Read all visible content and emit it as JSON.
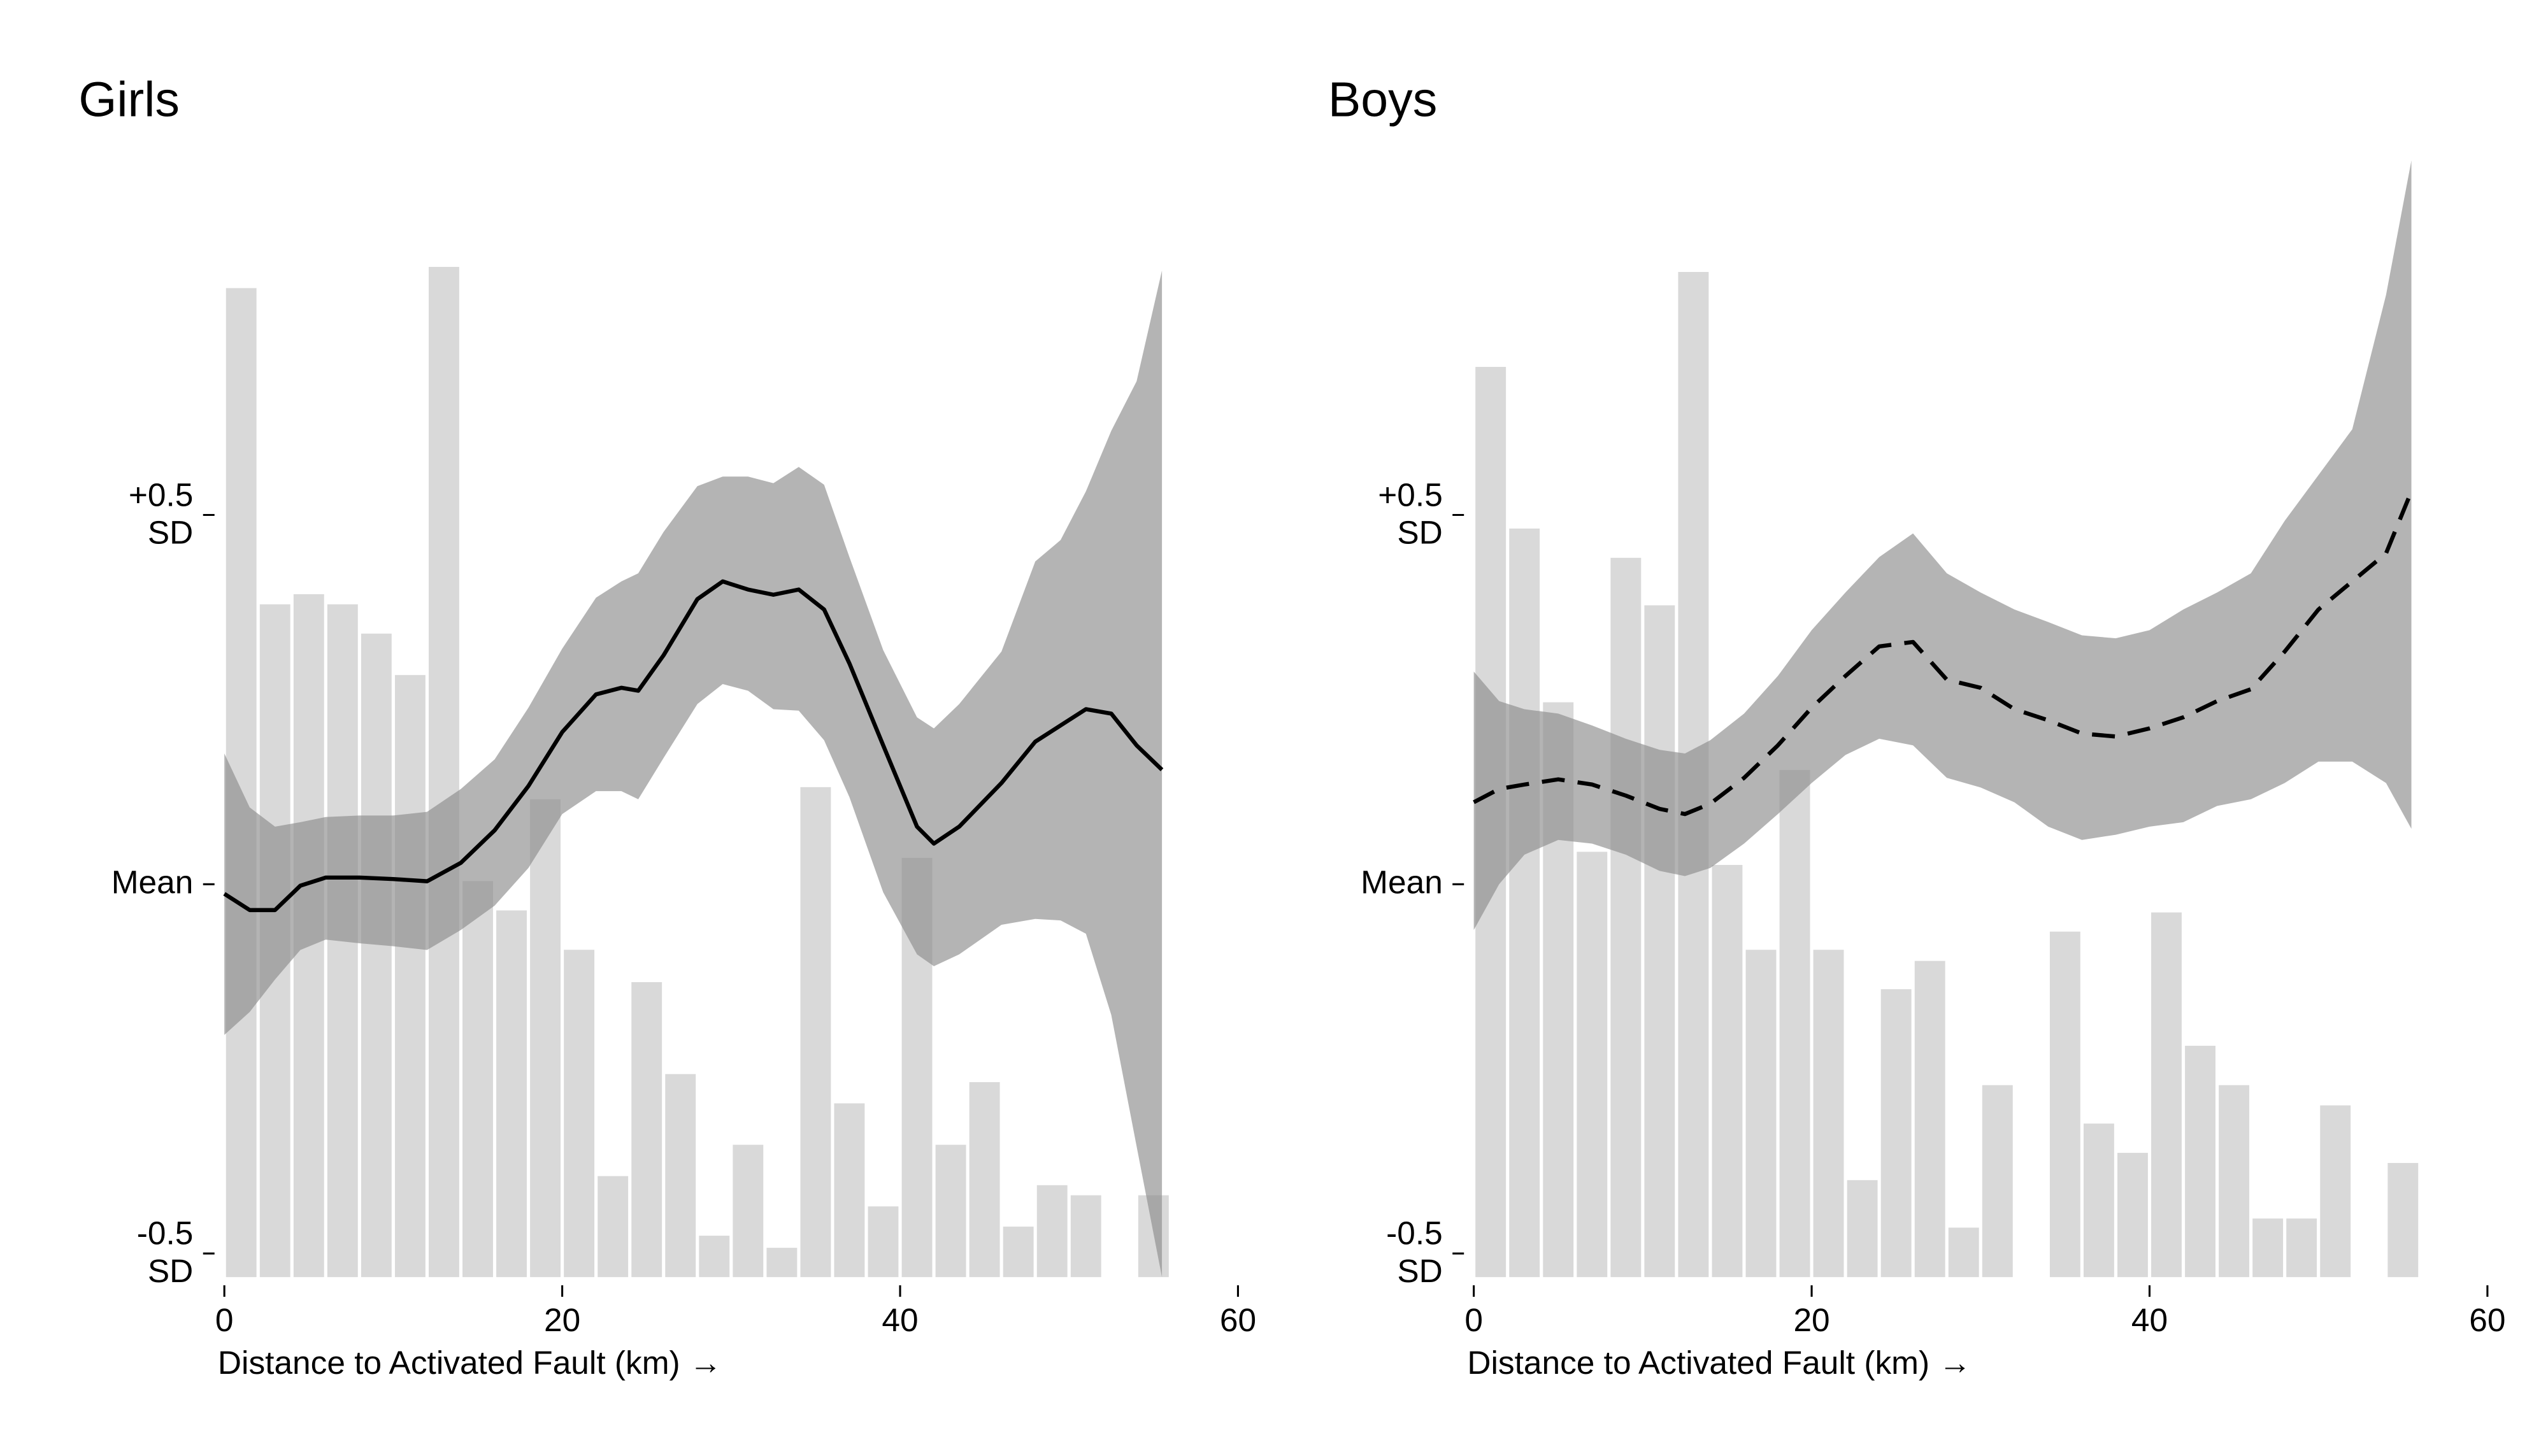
{
  "chart_data": [
    {
      "type": "line",
      "title": "Girls",
      "xlabel": "Distance to Activated Fault (km) →",
      "xlim": [
        0,
        60
      ],
      "xticks": [
        0,
        20,
        40,
        60
      ],
      "ylim": [
        -0.532,
        0.98
      ],
      "yticks": [
        {
          "value": 0.5,
          "label": "+0.5\nSD"
        },
        {
          "value": 0,
          "label": "Mean"
        },
        {
          "value": -0.5,
          "label": "-0.5\nSD"
        }
      ],
      "x": [
        0,
        1.5,
        3,
        4.5,
        6,
        8,
        10,
        12,
        14,
        16,
        18,
        20,
        22,
        23.5,
        24.5,
        26,
        28,
        29.5,
        31,
        32.5,
        34,
        35.5,
        37,
        39,
        41,
        42,
        43.5,
        46,
        48,
        49.5,
        51,
        52.5,
        54,
        55.5
      ],
      "series": [
        {
          "color": "#000000",
          "dashed": false,
          "band_color": "#8c8c8c",
          "values": [
            -0.013,
            -0.035,
            -0.035,
            -0.002,
            0.009,
            0.009,
            0.007,
            0.004,
            0.029,
            0.073,
            0.133,
            0.206,
            0.257,
            0.266,
            0.262,
            0.31,
            0.386,
            0.41,
            0.399,
            0.392,
            0.399,
            0.372,
            0.299,
            0.188,
            0.078,
            0.055,
            0.078,
            0.137,
            0.193,
            0.215,
            0.237,
            0.231,
            0.188,
            0.155
          ],
          "upper": [
            0.177,
            0.104,
            0.078,
            0.084,
            0.091,
            0.093,
            0.093,
            0.098,
            0.129,
            0.169,
            0.239,
            0.319,
            0.388,
            0.41,
            0.421,
            0.477,
            0.539,
            0.552,
            0.552,
            0.543,
            0.565,
            0.541,
            0.443,
            0.317,
            0.226,
            0.211,
            0.244,
            0.315,
            0.437,
            0.466,
            0.532,
            0.614,
            0.681,
            0.831
          ],
          "lower": [
            -0.204,
            -0.173,
            -0.129,
            -0.089,
            -0.075,
            -0.08,
            -0.084,
            -0.089,
            -0.062,
            -0.029,
            0.022,
            0.095,
            0.126,
            0.126,
            0.115,
            0.171,
            0.244,
            0.271,
            0.262,
            0.237,
            0.235,
            0.195,
            0.118,
            -0.011,
            -0.095,
            -0.111,
            -0.095,
            -0.055,
            -0.047,
            -0.049,
            -0.067,
            -0.177,
            -0.355,
            -0.532
          ]
        }
      ],
      "histogram": {
        "color": "#d9d9d9",
        "ylim": [
          0,
          100
        ],
        "bins": [
          0,
          2,
          4,
          6,
          8,
          10,
          12,
          14,
          16,
          18,
          20,
          22,
          24,
          26,
          28,
          30,
          32,
          34,
          36,
          38,
          40,
          42,
          44,
          46,
          48,
          50,
          52,
          54,
          56
        ],
        "counts": [
          97.9,
          66.6,
          67.6,
          66.6,
          63.7,
          59.6,
          100,
          39.2,
          36.3,
          47.3,
          32.4,
          10,
          29.2,
          20.1,
          4.1,
          13.1,
          2.9,
          48.5,
          17.2,
          7,
          41.5,
          13.1,
          19.3,
          5,
          9.1,
          8.1,
          0,
          8.1
        ]
      }
    },
    {
      "type": "line",
      "title": "Boys",
      "xlabel": "Distance to Activated Fault (km) →",
      "xlim": [
        0,
        60
      ],
      "xticks": [
        0,
        20,
        40,
        60
      ],
      "ylim": [
        -0.532,
        0.98
      ],
      "yticks": [
        {
          "value": 0.5,
          "label": "+0.5\nSD"
        },
        {
          "value": 0,
          "label": "Mean"
        },
        {
          "value": -0.5,
          "label": "-0.5\nSD"
        }
      ],
      "x": [
        0,
        1.5,
        3,
        5,
        7,
        9,
        11,
        12.5,
        14,
        16,
        18,
        20,
        22,
        24,
        26,
        28,
        30,
        32,
        34,
        36,
        38,
        40,
        42,
        44,
        46,
        48,
        50,
        52,
        54,
        55.5
      ],
      "series": [
        {
          "color": "#000000",
          "dashed": true,
          "band_color": "#8c8c8c",
          "values": [
            0.111,
            0.129,
            0.135,
            0.142,
            0.135,
            0.12,
            0.102,
            0.095,
            0.109,
            0.144,
            0.188,
            0.239,
            0.282,
            0.322,
            0.328,
            0.277,
            0.266,
            0.237,
            0.222,
            0.204,
            0.2,
            0.211,
            0.226,
            0.248,
            0.264,
            0.315,
            0.372,
            0.41,
            0.448,
            0.532
          ],
          "upper": [
            0.288,
            0.248,
            0.237,
            0.231,
            0.215,
            0.197,
            0.182,
            0.177,
            0.195,
            0.231,
            0.282,
            0.344,
            0.395,
            0.443,
            0.475,
            0.421,
            0.395,
            0.372,
            0.355,
            0.337,
            0.333,
            0.344,
            0.372,
            0.395,
            0.421,
            0.492,
            0.554,
            0.616,
            0.798,
            0.98
          ],
          "lower": [
            -0.062,
            0,
            0.04,
            0.06,
            0.055,
            0.04,
            0.018,
            0.011,
            0.022,
            0.055,
            0.095,
            0.137,
            0.175,
            0.197,
            0.188,
            0.144,
            0.131,
            0.111,
            0.078,
            0.06,
            0.067,
            0.078,
            0.084,
            0.106,
            0.115,
            0.137,
            0.166,
            0.166,
            0.137,
            0.075
          ]
        }
      ],
      "histogram": {
        "color": "#d9d9d9",
        "ylim": [
          0,
          100
        ],
        "bins": [
          0,
          2,
          4,
          6,
          8,
          10,
          12,
          14,
          16,
          18,
          20,
          22,
          24,
          26,
          28,
          30,
          32,
          34,
          36,
          38,
          40,
          42,
          44,
          46,
          48,
          50,
          52,
          54,
          56
        ],
        "counts": [
          90.1,
          74.1,
          56.9,
          42.1,
          71.2,
          66.5,
          99.5,
          40.8,
          32.4,
          50.2,
          32.4,
          9.6,
          28.5,
          31.3,
          4.9,
          19,
          0,
          34.2,
          15.2,
          12.3,
          36.1,
          22.9,
          19,
          5.8,
          5.8,
          17,
          0,
          11.3
        ]
      }
    }
  ]
}
